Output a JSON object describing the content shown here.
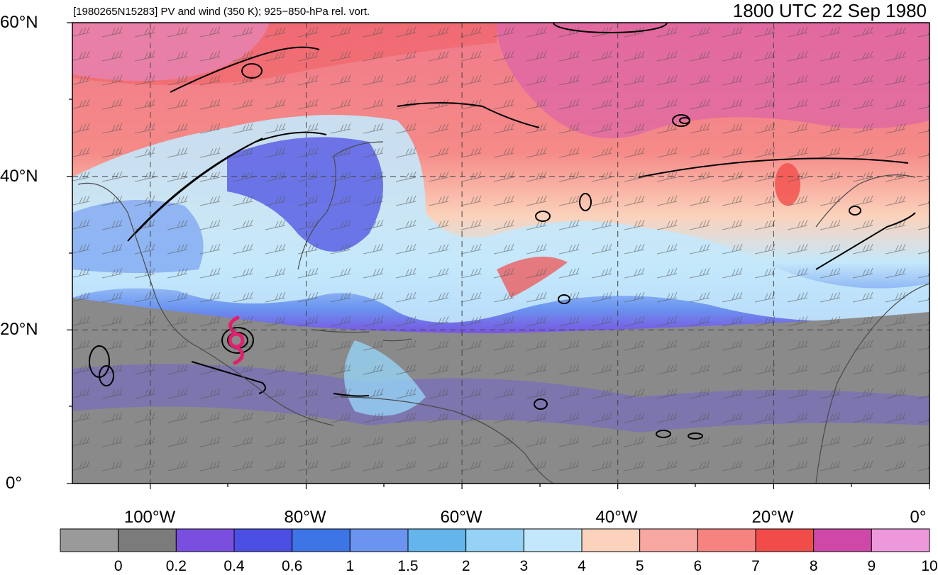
{
  "title_left": "[1980265N15283] PV and wind (350 K); 925−850-hPa rel. vort.",
  "title_right": "1800 UTC 22 Sep 1980",
  "lat_labels": [
    "60°N",
    "40°N",
    "20°N",
    "0°"
  ],
  "lon_labels": [
    "100°W",
    "80°W",
    "60°W",
    "40°W",
    "20°W",
    "0°"
  ],
  "map_extent": {
    "lon_min": -110,
    "lon_max": 0,
    "lat_min": 0,
    "lat_max": 60
  },
  "storm_center": {
    "lon": -89.5,
    "lat": 18.3,
    "icon": "tropical-cyclone-icon",
    "color": "#e0206e"
  },
  "colorbar": {
    "labels": [
      "0",
      "0.2",
      "0.4",
      "0.6",
      "1",
      "1.5",
      "2",
      "3",
      "4",
      "5",
      "6",
      "7",
      "8",
      "9",
      "10"
    ],
    "colors": [
      "#9a9a9a",
      "#7b7b7b",
      "#7a4fe0",
      "#4b4fe3",
      "#3d74e6",
      "#6a94f0",
      "#63b5ec",
      "#95d2f5",
      "#c4e8fb",
      "#fbd2bb",
      "#f9a7a3",
      "#f6837f",
      "#f24c4a",
      "#cf48a8",
      "#ee98dc"
    ]
  }
}
